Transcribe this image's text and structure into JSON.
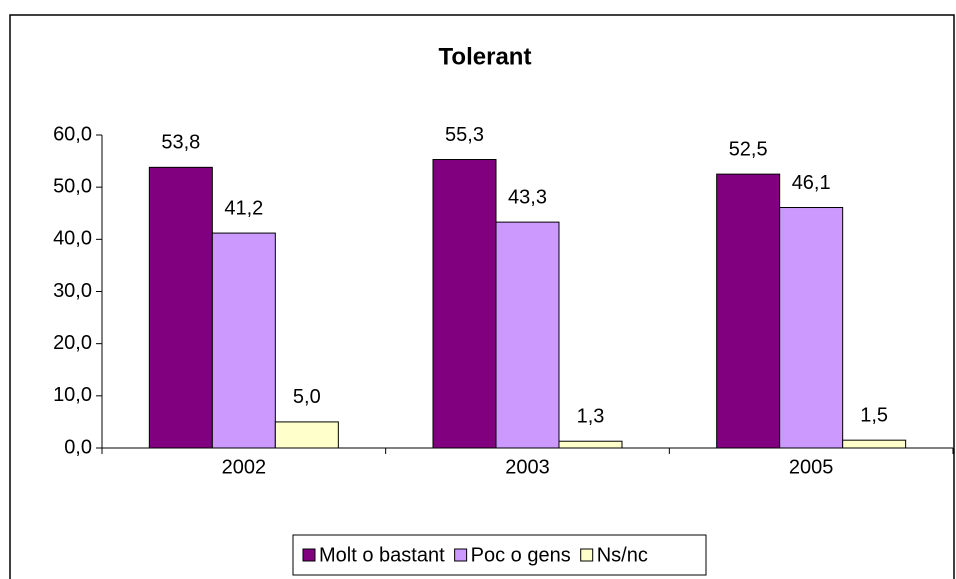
{
  "chart_data": {
    "type": "bar",
    "title": "Tolerant",
    "categories": [
      "2002",
      "2003",
      "2005"
    ],
    "series": [
      {
        "name": "Molt o bastant",
        "color": "#800080",
        "values": [
          53.8,
          55.3,
          52.5
        ],
        "value_labels": [
          "53,8",
          "55,3",
          "52,5"
        ]
      },
      {
        "name": "Poc o gens",
        "color": "#cc99ff",
        "values": [
          41.2,
          43.3,
          46.1
        ],
        "value_labels": [
          "41,2",
          "43,3",
          "46,1"
        ]
      },
      {
        "name": "Ns/nc",
        "color": "#ffffcc",
        "values": [
          5.0,
          1.3,
          1.5
        ],
        "value_labels": [
          "5,0",
          "1,3",
          "1,5"
        ]
      }
    ],
    "ylim": [
      0,
      60
    ],
    "yticks": [
      {
        "value": 0,
        "label": "0,0"
      },
      {
        "value": 10,
        "label": "10,0"
      },
      {
        "value": 20,
        "label": "20,0"
      },
      {
        "value": 30,
        "label": "30,0"
      },
      {
        "value": 40,
        "label": "40,0"
      },
      {
        "value": 50,
        "label": "50,0"
      },
      {
        "value": 60,
        "label": "60,0"
      }
    ],
    "legend": "bottom"
  }
}
